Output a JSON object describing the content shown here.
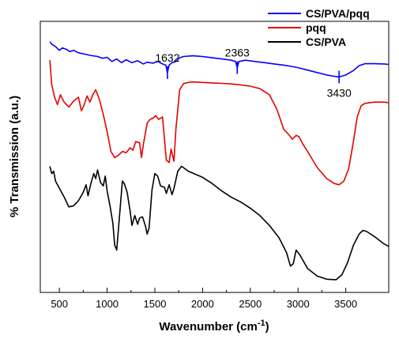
{
  "chart_data": {
    "type": "line",
    "title": "",
    "xlabel": "Wavenumber (cm",
    "xlabel_sup": "-1",
    "xlabel_close": ")",
    "ylabel": "% Transmission (a.u.)",
    "xlim": [
      300,
      3950
    ],
    "ylim": [
      0,
      100
    ],
    "x_ticks": [
      500,
      1000,
      1500,
      2000,
      2500,
      3000,
      3500
    ],
    "y_ticks_shown": false,
    "legend_position": "top-right",
    "series": [
      {
        "name": "CS/PVA/pqq",
        "color": "#0000ff",
        "points": [
          [
            400,
            97.5
          ],
          [
            420,
            96.5
          ],
          [
            460,
            95.5
          ],
          [
            500,
            94.0
          ],
          [
            530,
            95.0
          ],
          [
            570,
            94.5
          ],
          [
            610,
            93.5
          ],
          [
            650,
            94.0
          ],
          [
            700,
            93.0
          ],
          [
            760,
            92.5
          ],
          [
            820,
            92.0
          ],
          [
            900,
            91.5
          ],
          [
            950,
            90.8
          ],
          [
            1000,
            91.2
          ],
          [
            1050,
            89.5
          ],
          [
            1100,
            90.5
          ],
          [
            1150,
            89.0
          ],
          [
            1200,
            90.2
          ],
          [
            1260,
            89.0
          ],
          [
            1320,
            89.8
          ],
          [
            1380,
            88.5
          ],
          [
            1420,
            89.2
          ],
          [
            1480,
            88.8
          ],
          [
            1530,
            89.5
          ],
          [
            1580,
            88.5
          ],
          [
            1615,
            88.0
          ],
          [
            1632,
            85.0
          ],
          [
            1650,
            88.0
          ],
          [
            1680,
            89.0
          ],
          [
            1720,
            89.5
          ],
          [
            1760,
            91.0
          ],
          [
            1800,
            91.5
          ],
          [
            1900,
            91.8
          ],
          [
            2000,
            91.5
          ],
          [
            2100,
            91.0
          ],
          [
            2200,
            90.5
          ],
          [
            2300,
            90.0
          ],
          [
            2345,
            89.5
          ],
          [
            2363,
            87.0
          ],
          [
            2380,
            89.5
          ],
          [
            2450,
            90.0
          ],
          [
            2550,
            89.5
          ],
          [
            2650,
            89.0
          ],
          [
            2750,
            88.5
          ],
          [
            2850,
            88.0
          ],
          [
            2930,
            87.5
          ],
          [
            3000,
            87.0
          ],
          [
            3100,
            86.0
          ],
          [
            3200,
            85.0
          ],
          [
            3300,
            84.0
          ],
          [
            3380,
            83.5
          ],
          [
            3430,
            83.2
          ],
          [
            3500,
            84.0
          ],
          [
            3580,
            85.8
          ],
          [
            3640,
            87.8
          ],
          [
            3700,
            88.6
          ],
          [
            3800,
            88.6
          ],
          [
            3900,
            88.5
          ],
          [
            3950,
            88.3
          ]
        ]
      },
      {
        "name": "pqq",
        "color": "#e60000",
        "points": [
          [
            400,
            90.0
          ],
          [
            420,
            80.0
          ],
          [
            450,
            75.0
          ],
          [
            480,
            72.0
          ],
          [
            510,
            76.0
          ],
          [
            550,
            73.0
          ],
          [
            600,
            71.0
          ],
          [
            650,
            73.5
          ],
          [
            700,
            75.0
          ],
          [
            730,
            69.5
          ],
          [
            760,
            72.0
          ],
          [
            790,
            75.5
          ],
          [
            820,
            73.0
          ],
          [
            850,
            76.0
          ],
          [
            880,
            78.0
          ],
          [
            920,
            74.0
          ],
          [
            960,
            68.0
          ],
          [
            1000,
            61.0
          ],
          [
            1040,
            53.0
          ],
          [
            1080,
            50.5
          ],
          [
            1120,
            51.5
          ],
          [
            1160,
            53.0
          ],
          [
            1200,
            52.5
          ],
          [
            1240,
            54.5
          ],
          [
            1270,
            53.5
          ],
          [
            1300,
            57.0
          ],
          [
            1340,
            56.5
          ],
          [
            1360,
            50.5
          ],
          [
            1380,
            56.0
          ],
          [
            1420,
            64.5
          ],
          [
            1450,
            66.0
          ],
          [
            1480,
            66.5
          ],
          [
            1510,
            67.5
          ],
          [
            1540,
            66.0
          ],
          [
            1580,
            67.0
          ],
          [
            1620,
            49.5
          ],
          [
            1650,
            48.5
          ],
          [
            1670,
            54.0
          ],
          [
            1700,
            49.0
          ],
          [
            1720,
            62.0
          ],
          [
            1760,
            78.0
          ],
          [
            1800,
            80.5
          ],
          [
            1850,
            81.0
          ],
          [
            1900,
            81.2
          ],
          [
            2000,
            81.0
          ],
          [
            2100,
            80.8
          ],
          [
            2200,
            80.6
          ],
          [
            2300,
            80.4
          ],
          [
            2400,
            80.0
          ],
          [
            2500,
            79.5
          ],
          [
            2600,
            78.5
          ],
          [
            2700,
            76.0
          ],
          [
            2780,
            70.0
          ],
          [
            2850,
            62.0
          ],
          [
            2900,
            60.0
          ],
          [
            2940,
            58.0
          ],
          [
            2980,
            59.5
          ],
          [
            3010,
            59.0
          ],
          [
            3050,
            56.0
          ],
          [
            3100,
            53.0
          ],
          [
            3200,
            46.5
          ],
          [
            3300,
            42.0
          ],
          [
            3380,
            40.0
          ],
          [
            3430,
            39.5
          ],
          [
            3480,
            41.0
          ],
          [
            3530,
            46.0
          ],
          [
            3580,
            57.0
          ],
          [
            3620,
            67.0
          ],
          [
            3660,
            71.5
          ],
          [
            3700,
            72.5
          ],
          [
            3800,
            73.0
          ],
          [
            3900,
            73.0
          ],
          [
            3950,
            72.8
          ]
        ]
      },
      {
        "name": "CS/PVA",
        "color": "#000000",
        "points": [
          [
            400,
            47.0
          ],
          [
            420,
            44.0
          ],
          [
            440,
            45.0
          ],
          [
            460,
            41.0
          ],
          [
            500,
            38.0
          ],
          [
            550,
            34.5
          ],
          [
            600,
            30.5
          ],
          [
            650,
            31.0
          ],
          [
            700,
            33.0
          ],
          [
            750,
            36.5
          ],
          [
            780,
            39.5
          ],
          [
            800,
            35.0
          ],
          [
            830,
            40.0
          ],
          [
            860,
            44.0
          ],
          [
            880,
            42.0
          ],
          [
            900,
            45.5
          ],
          [
            930,
            40.5
          ],
          [
            960,
            39.0
          ],
          [
            980,
            43.0
          ],
          [
            1000,
            37.0
          ],
          [
            1030,
            31.0
          ],
          [
            1060,
            24.0
          ],
          [
            1080,
            15.0
          ],
          [
            1100,
            13.0
          ],
          [
            1130,
            27.0
          ],
          [
            1160,
            41.0
          ],
          [
            1180,
            40.0
          ],
          [
            1210,
            36.5
          ],
          [
            1240,
            29.0
          ],
          [
            1260,
            23.0
          ],
          [
            1290,
            27.0
          ],
          [
            1320,
            23.5
          ],
          [
            1340,
            26.0
          ],
          [
            1370,
            26.5
          ],
          [
            1400,
            23.0
          ],
          [
            1420,
            19.5
          ],
          [
            1440,
            22.0
          ],
          [
            1470,
            37.5
          ],
          [
            1500,
            44.0
          ],
          [
            1530,
            43.0
          ],
          [
            1560,
            39.0
          ],
          [
            1600,
            38.5
          ],
          [
            1620,
            36.0
          ],
          [
            1650,
            39.5
          ],
          [
            1680,
            35.5
          ],
          [
            1700,
            38.0
          ],
          [
            1740,
            45.0
          ],
          [
            1780,
            47.0
          ],
          [
            1850,
            45.0
          ],
          [
            2000,
            42.5
          ],
          [
            2100,
            40.0
          ],
          [
            2200,
            37.0
          ],
          [
            2300,
            34.5
          ],
          [
            2400,
            32.5
          ],
          [
            2500,
            30.0
          ],
          [
            2600,
            27.0
          ],
          [
            2700,
            23.0
          ],
          [
            2800,
            18.0
          ],
          [
            2880,
            12.0
          ],
          [
            2920,
            6.5
          ],
          [
            2950,
            7.5
          ],
          [
            2980,
            13.0
          ],
          [
            3020,
            11.0
          ],
          [
            3100,
            5.5
          ],
          [
            3200,
            2.5
          ],
          [
            3300,
            1.2
          ],
          [
            3400,
            1.0
          ],
          [
            3460,
            3.0
          ],
          [
            3520,
            8.0
          ],
          [
            3580,
            15.0
          ],
          [
            3640,
            19.5
          ],
          [
            3680,
            21.0
          ],
          [
            3720,
            20.5
          ],
          [
            3800,
            18.5
          ],
          [
            3900,
            15.5
          ],
          [
            3950,
            14.5
          ]
        ]
      }
    ],
    "annotations": [
      {
        "label": "1632",
        "x": 1632
      },
      {
        "label": "2363",
        "x": 2363
      },
      {
        "label": "3430",
        "x": 3430
      }
    ]
  }
}
